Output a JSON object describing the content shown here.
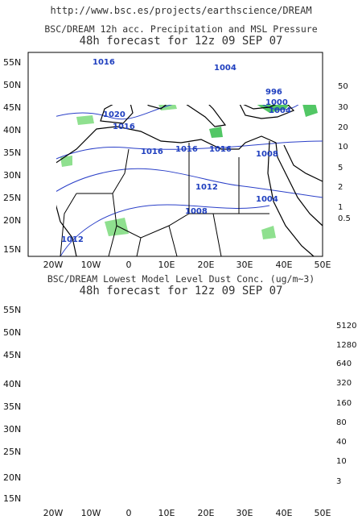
{
  "source_url": "http://www.bsc.es/projects/earthscience/DREAM",
  "top_panel": {
    "title": "BSC/DREAM 12h acc. Precipitation and MSL Pressure",
    "subtitle": "48h forecast for 12z 09 SEP 07",
    "colorbar_labels": [
      "50",
      "30",
      "20",
      "10",
      "5",
      "2",
      "1",
      "0.5"
    ],
    "colorbar_colors": [
      "#1f5fd6",
      "#2f86e0",
      "#4aa8ee",
      "#0f7a22",
      "#2ea843",
      "#52c765",
      "#8fe08f",
      "#d6f5c8"
    ],
    "isobars": [
      "1004",
      "1020",
      "1016",
      "1016",
      "1016",
      "1016",
      "1016",
      "1008",
      "996",
      "1000",
      "1004",
      "1012",
      "1008",
      "1004",
      "1012"
    ]
  },
  "bottom_panel": {
    "title": "BSC/DREAM Lowest Model Level Dust Conc. (ug/m~3)",
    "subtitle": "48h forecast for 12z 09 SEP 07",
    "colorbar_labels": [
      "5120",
      "1280",
      "640",
      "320",
      "160",
      "80",
      "40",
      "10",
      "3"
    ],
    "colorbar_colors": [
      "#6a4aa0",
      "#8a5cc4",
      "#9a2f5a",
      "#c23d2e",
      "#e07a1f",
      "#f3c22b",
      "#49b596",
      "#7fd6c4",
      "#c7f1ea"
    ]
  },
  "lat_labels": [
    "55N",
    "50N",
    "45N",
    "40N",
    "35N",
    "30N",
    "25N",
    "20N",
    "15N"
  ],
  "lon_labels": [
    "20W",
    "10W",
    "0",
    "10E",
    "20E",
    "30E",
    "40E",
    "50E"
  ]
}
